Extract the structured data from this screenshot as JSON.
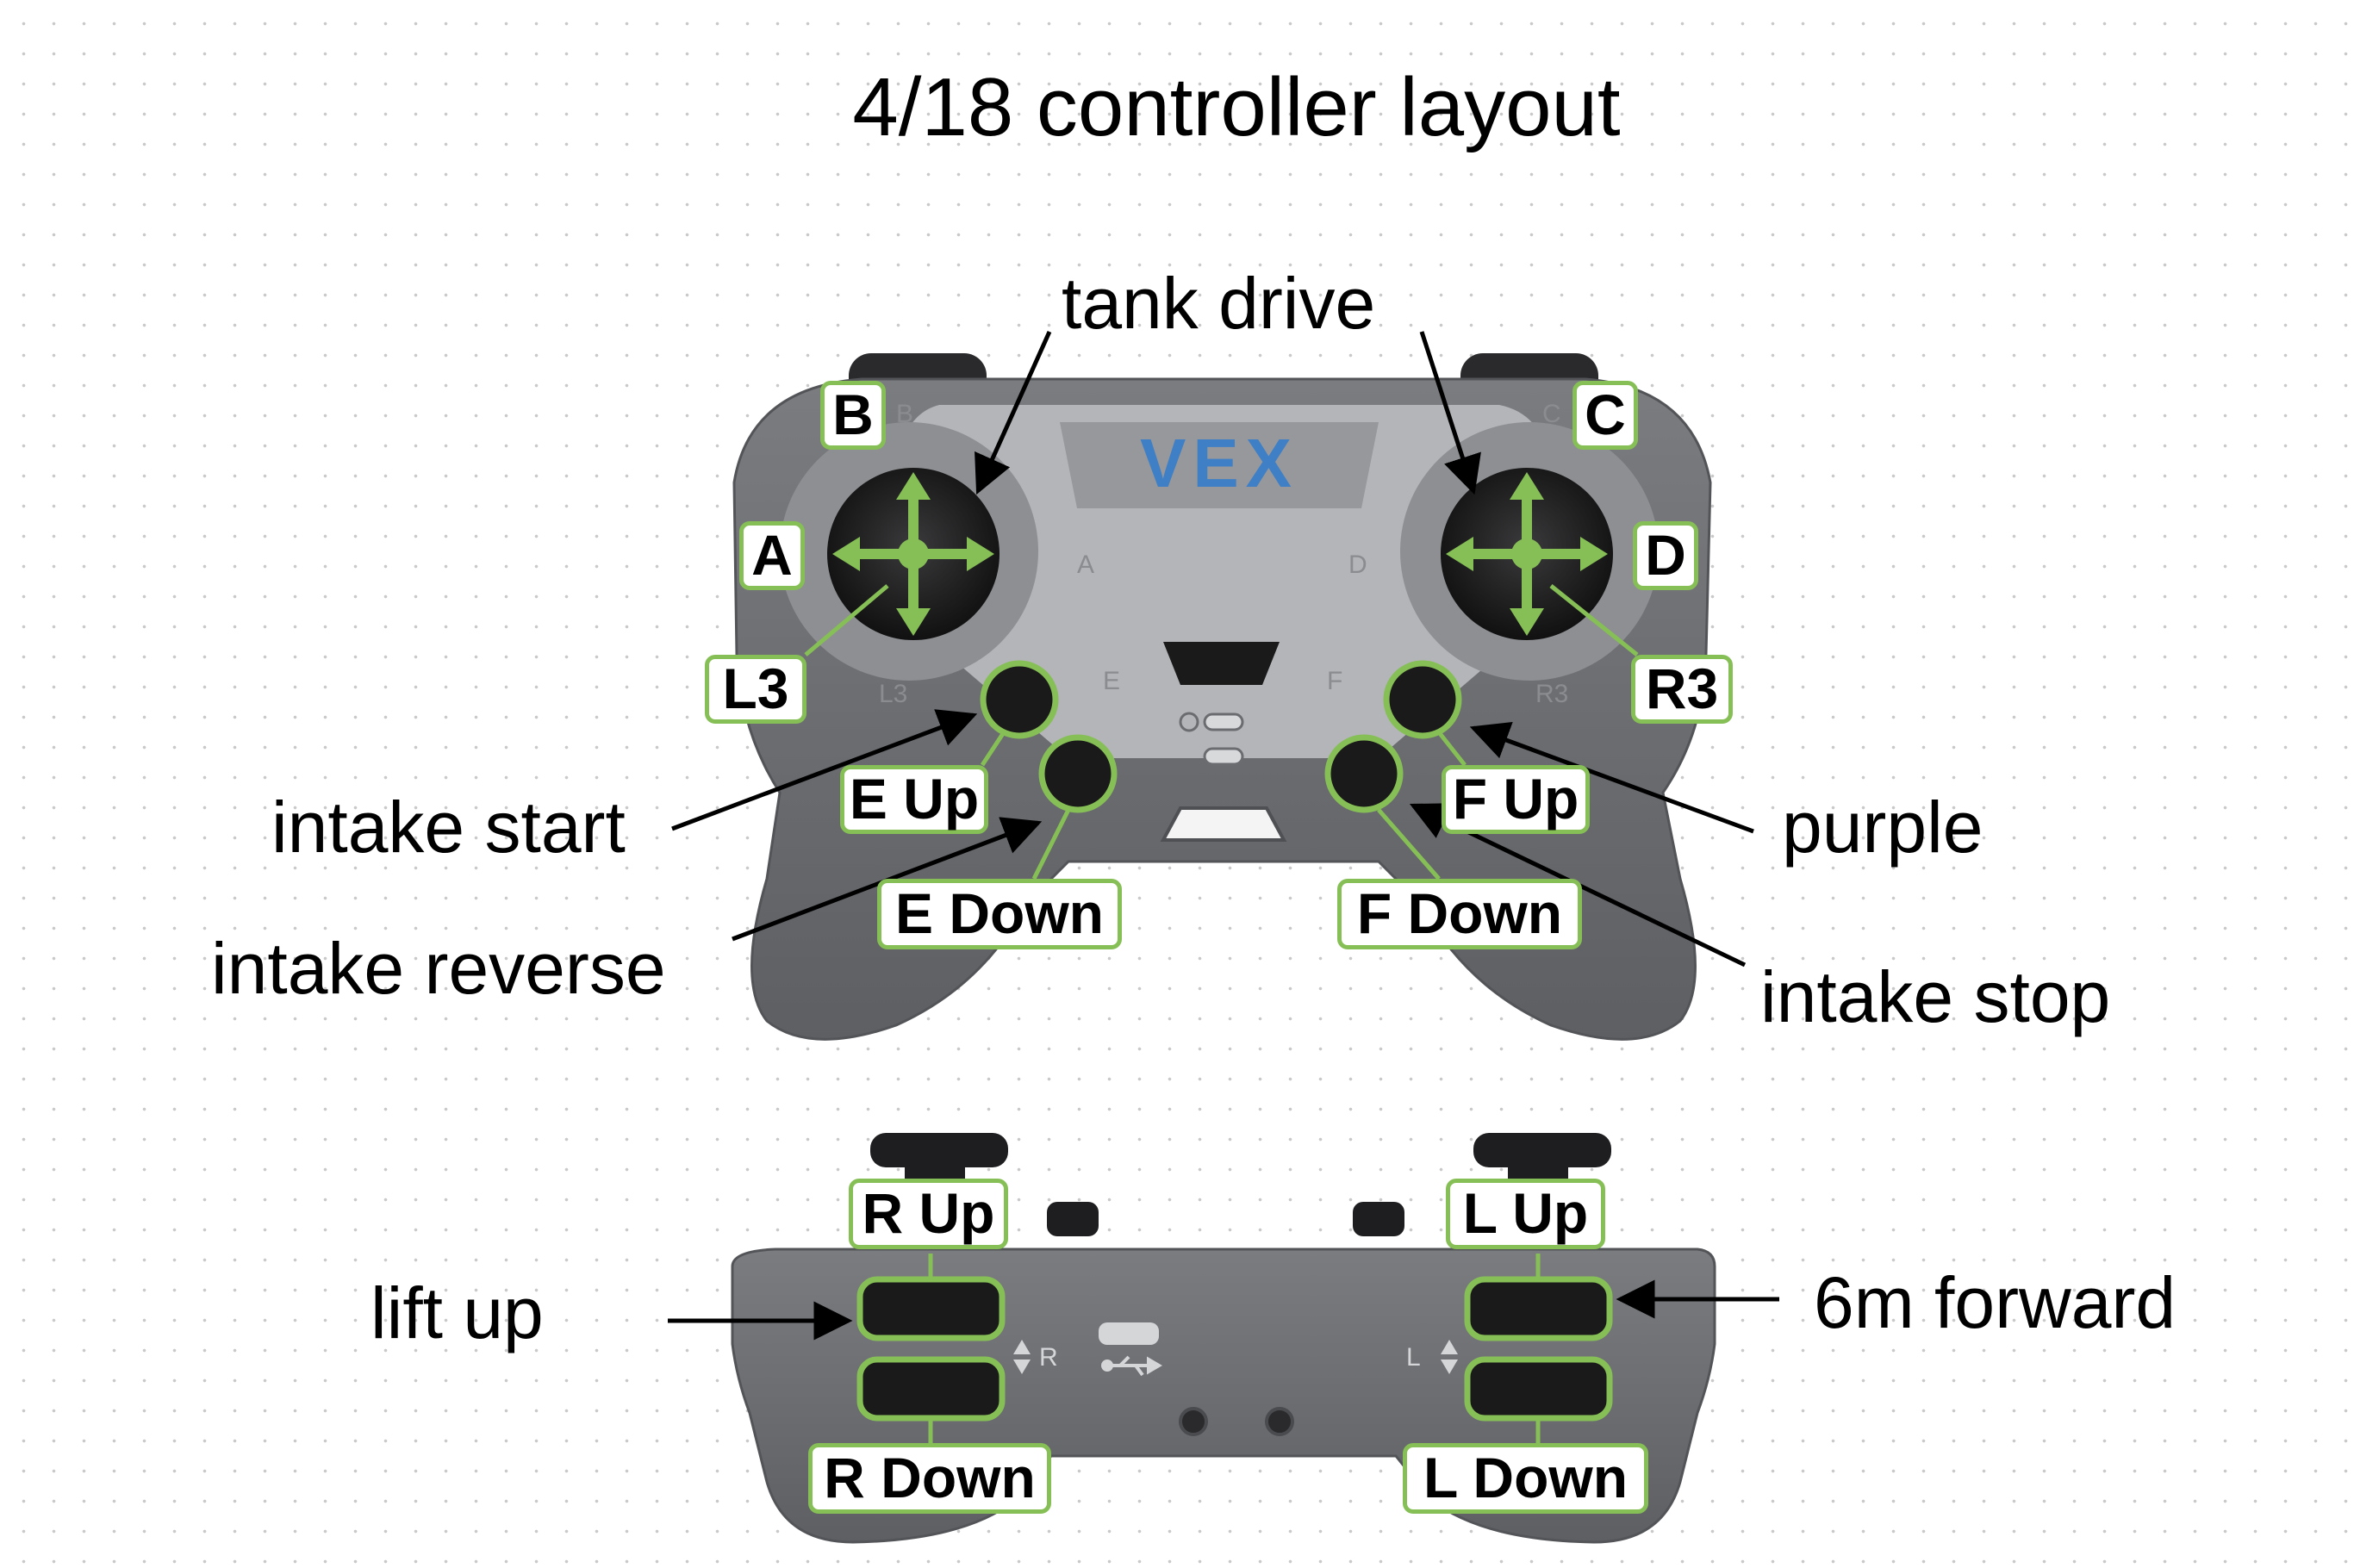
{
  "title": "4/18 controller layout",
  "controller_top": {
    "logo": "VEX",
    "printed_labels": {
      "b": "B",
      "c": "C",
      "a": "A",
      "d": "D",
      "e": "E",
      "f": "F",
      "l3": "L3",
      "r3": "R3"
    }
  },
  "controller_back": {
    "printed_labels": {
      "r": "R",
      "l": "L"
    }
  },
  "button_tags": {
    "b": "B",
    "c": "C",
    "a": "A",
    "d": "D",
    "l3": "L3",
    "r3": "R3",
    "e_up": "E Up",
    "e_down": "E Down",
    "f_up": "F Up",
    "f_down": "F Down",
    "r_up": "R Up",
    "r_down": "R Down",
    "l_up": "L Up",
    "l_down": "L Down"
  },
  "annotations": {
    "tank_drive": "tank drive",
    "intake_start": "intake start",
    "intake_reverse": "intake reverse",
    "purple": "purple",
    "intake_stop": "intake stop",
    "lift_up": "lift up",
    "six_m_forward": "6m forward"
  },
  "colors": {
    "accent_green": "#86bf56",
    "controller_gray": "#6b6d70",
    "panel_light": "#b8babd",
    "logo_blue": "#3f7fc6",
    "thumbstick": "#1c1c1e"
  },
  "icons": [
    "joystick-arrows-icon",
    "power-icon",
    "usb-icon",
    "arrow-icon"
  ]
}
